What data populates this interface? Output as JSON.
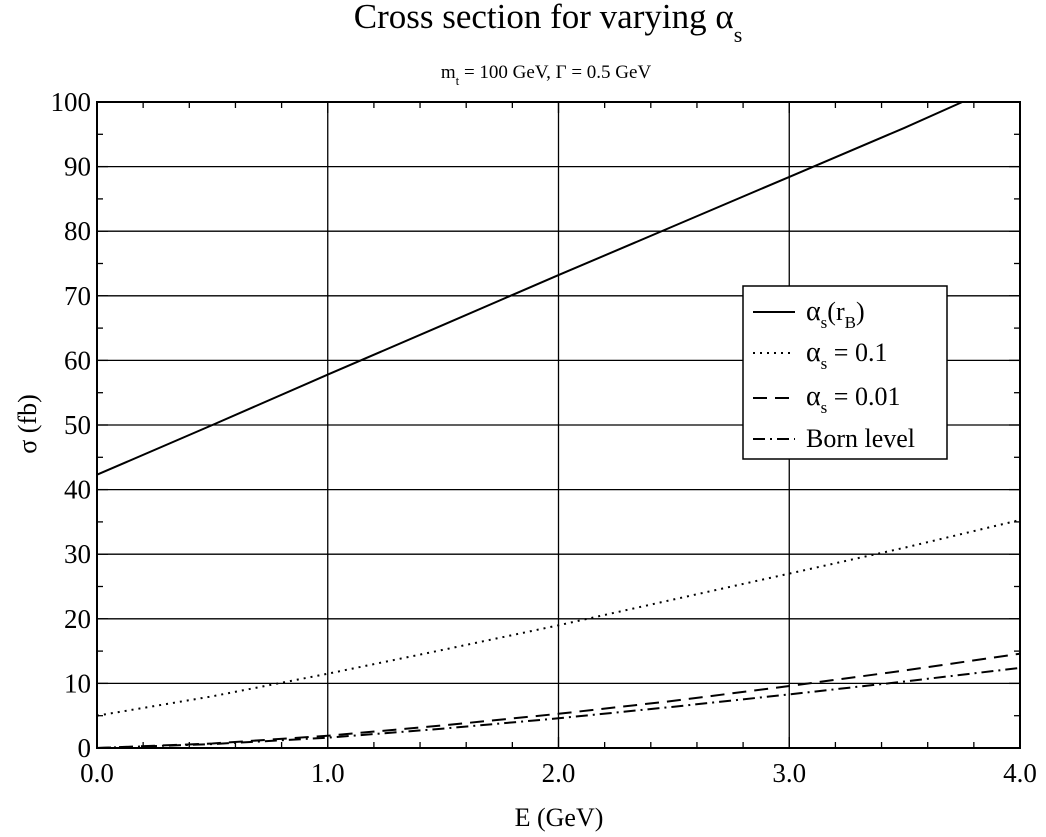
{
  "chart_data": {
    "type": "line",
    "title": "Cross section for varying α",
    "title_subscript": "s",
    "subtitle_parts": [
      "m",
      "t",
      " = 100 GeV, Γ = 0.5 GeV"
    ],
    "xlabel": "E (GeV)",
    "ylabel": "σ (fb)",
    "xlim": [
      0.0,
      4.0
    ],
    "ylim": [
      0,
      100
    ],
    "xticks": [
      0.0,
      1.0,
      2.0,
      3.0,
      4.0
    ],
    "xtick_labels": [
      "0.0",
      "1.0",
      "2.0",
      "3.0",
      "4.0"
    ],
    "yticks": [
      0,
      10,
      20,
      30,
      40,
      50,
      60,
      70,
      80,
      90,
      100
    ],
    "ytick_labels": [
      "0",
      "10",
      "20",
      "30",
      "40",
      "50",
      "60",
      "70",
      "80",
      "90",
      "100"
    ],
    "grid": true,
    "legend_position": "center-right",
    "series": [
      {
        "name": "αs(rB)",
        "label_parts": [
          "α",
          "s",
          "(r",
          "B",
          ")"
        ],
        "style": "solid",
        "color": "#000000",
        "x": [
          0.0,
          0.5,
          1.0,
          1.5,
          2.0,
          2.5,
          3.0,
          3.5,
          3.75
        ],
        "y": [
          42.3,
          50.0,
          57.8,
          65.5,
          73.2,
          80.8,
          88.4,
          96.0,
          100.0
        ]
      },
      {
        "name": "αs = 0.1",
        "label_parts": [
          "α",
          "s",
          " = 0.1"
        ],
        "style": "dotted",
        "color": "#000000",
        "x": [
          0.0,
          0.5,
          1.0,
          1.5,
          2.0,
          2.5,
          3.0,
          3.5,
          4.0
        ],
        "y": [
          5.0,
          8.0,
          11.5,
          15.2,
          19.0,
          23.0,
          27.0,
          31.0,
          35.3
        ]
      },
      {
        "name": "αs = 0.01",
        "label_parts": [
          "α",
          "s",
          " = 0.01"
        ],
        "style": "dashed",
        "color": "#000000",
        "x": [
          0.0,
          0.5,
          1.0,
          1.5,
          2.0,
          2.5,
          3.0,
          3.5,
          4.0
        ],
        "y": [
          0.0,
          0.7,
          1.9,
          3.5,
          5.3,
          7.3,
          9.6,
          12.0,
          14.6
        ]
      },
      {
        "name": "Born level",
        "label_parts": [
          "Born level"
        ],
        "style": "dashdot",
        "color": "#000000",
        "x": [
          0.0,
          0.5,
          1.0,
          1.5,
          2.0,
          2.5,
          3.0,
          3.5,
          4.0
        ],
        "y": [
          0.0,
          0.6,
          1.6,
          3.0,
          4.6,
          6.4,
          8.3,
          10.3,
          12.4
        ]
      }
    ]
  }
}
